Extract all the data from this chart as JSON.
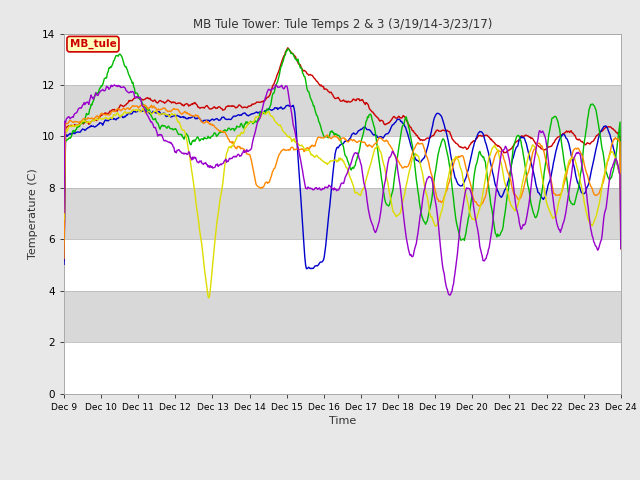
{
  "title": "MB Tule Tower: Tule Temps 2 & 3 (3/19/14-3/23/17)",
  "xlabel": "Time",
  "ylabel": "Temperature (C)",
  "ylim": [
    0,
    14
  ],
  "yticks": [
    0,
    2,
    4,
    6,
    8,
    10,
    12,
    14
  ],
  "x_labels": [
    "Dec 9",
    "Dec 10",
    "Dec 11",
    "Dec 12",
    "Dec 13",
    "Dec 14",
    "Dec 15",
    "Dec 16",
    "Dec 17",
    "Dec 18",
    "Dec 19",
    "Dec 20",
    "Dec 21",
    "Dec 22",
    "Dec 23",
    "Dec 24"
  ],
  "legend_label": "MB_tule",
  "series": {
    "Tul2_Ts-8": {
      "color": "#cc0000",
      "lw": 1.0
    },
    "Tul2_Ts0": {
      "color": "#0000cc",
      "lw": 1.0
    },
    "Tul2_Tw+10": {
      "color": "#00bb00",
      "lw": 1.0
    },
    "Tul3_Ts-8": {
      "color": "#ff8800",
      "lw": 1.0
    },
    "Tul3_Ts0": {
      "color": "#dddd00",
      "lw": 1.0
    },
    "Tul3_Tw+10": {
      "color": "#9900cc",
      "lw": 1.0
    }
  },
  "bg_color": "#e8e8e8",
  "plot_bg": "#ffffff",
  "grid_stripe_color": "#d8d8d8"
}
